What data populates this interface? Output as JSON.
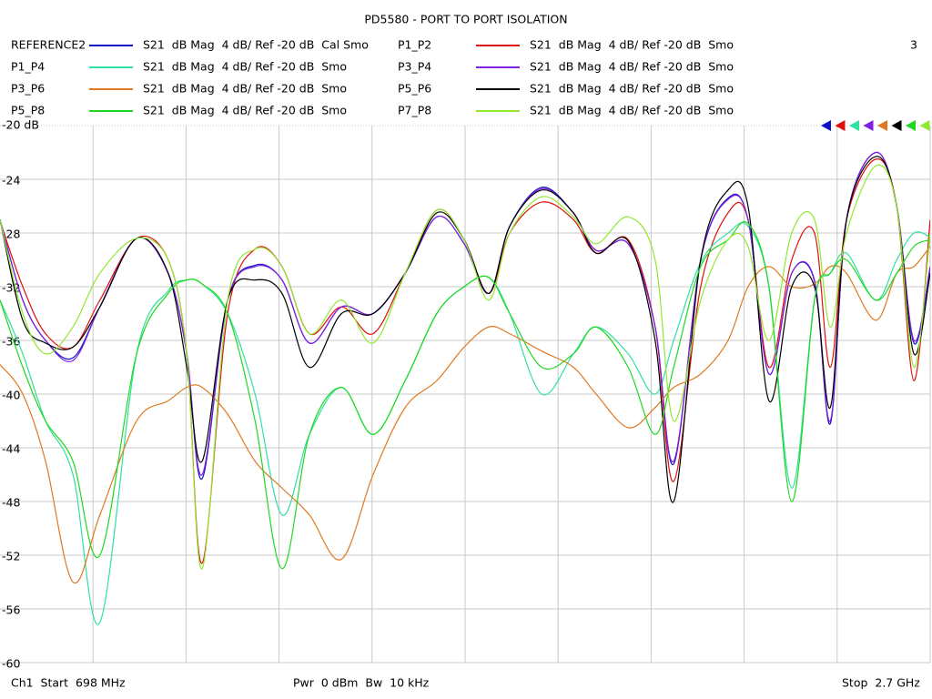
{
  "chart_data": {
    "type": "line",
    "title": "PD5580 - PORT TO PORT ISOLATION",
    "channel_number": "3",
    "footer_left": "Ch1  Start  698 MHz",
    "footer_center": "Pwr  0 dBm  Bw  10 kHz",
    "footer_right": "Stop  2.7 GHz",
    "xlim": [
      698,
      2700
    ],
    "ylim": [
      -60,
      -20
    ],
    "yticks": [
      {
        "value": -20,
        "label": "-20 dB"
      },
      -24,
      -28,
      -32,
      -36,
      -40,
      -44,
      -48,
      -52,
      -56,
      -60
    ],
    "grid": true,
    "x": [
      698,
      747,
      796,
      855,
      913,
      992,
      1060,
      1100,
      1133,
      1188,
      1247,
      1305,
      1364,
      1433,
      1501,
      1570,
      1638,
      1697,
      1750,
      1795,
      1864,
      1932,
      1981,
      2050,
      2108,
      2148,
      2206,
      2265,
      2308,
      2353,
      2402,
      2451,
      2485,
      2520,
      2583,
      2628,
      2665,
      2700
    ],
    "series": [
      {
        "name": "REFERENCE2",
        "description": "S21  dB Mag  4 dB/ Ref -20 dB  Cal Smo",
        "color": "#1010c8",
        "values": [
          -27,
          -33,
          -36,
          -37.3,
          -33.5,
          -28.4,
          -31,
          -37,
          -46.3,
          -33,
          -30.4,
          -31.5,
          -36.2,
          -33.5,
          -34,
          -31,
          -26.8,
          -28.8,
          -32.5,
          -27.5,
          -24.6,
          -26.5,
          -29.3,
          -28.8,
          -35,
          -45.2,
          -30,
          -25.4,
          -27,
          -38.5,
          -31,
          -31.6,
          -42.2,
          -27,
          -22,
          -26,
          -36.2,
          -30.6
        ]
      },
      {
        "name": "P1_P2",
        "description": "S21  dB Mag  4 dB/ Ref -20 dB  Smo",
        "color": "#e01010",
        "values": [
          -27.1,
          -32,
          -35.5,
          -36.5,
          -33,
          -28.4,
          -30,
          -37,
          -52.6,
          -34,
          -29.2,
          -30.5,
          -35.5,
          -33.5,
          -35.5,
          -31,
          -26.3,
          -28.5,
          -32.5,
          -28,
          -25.7,
          -27,
          -29.5,
          -28.5,
          -35,
          -46.5,
          -32,
          -26.5,
          -27,
          -38,
          -30,
          -28,
          -38,
          -27,
          -22.5,
          -26,
          -39,
          -27
        ]
      },
      {
        "name": "P1_P4",
        "description": "S21  dB Mag  4 dB/ Ref -20 dB  Smo",
        "color": "#30e0a0",
        "values": [
          -33,
          -37,
          -42,
          -46,
          -57,
          -37,
          -32.3,
          -31.5,
          -31.8,
          -34,
          -40,
          -49,
          -43,
          -39.5,
          -43,
          -39,
          -34,
          -32,
          -31.3,
          -34,
          -40,
          -37,
          -35,
          -37,
          -40,
          -36,
          -30.2,
          -28,
          -27.5,
          -32,
          -47,
          -33,
          -31,
          -29.5,
          -33,
          -30,
          -28,
          -28.3
        ]
      },
      {
        "name": "P3_P4",
        "description": "S21  dB Mag  4 dB/ Ref -20 dB  Smo",
        "color": "#8020e0",
        "values": [
          -27,
          -33,
          -36,
          -37.5,
          -33.5,
          -28.4,
          -31,
          -37,
          -46,
          -33,
          -30.5,
          -31.5,
          -36.2,
          -33.5,
          -34,
          -31,
          -26.8,
          -28.8,
          -32.5,
          -27.5,
          -24.7,
          -26.5,
          -29.3,
          -28.8,
          -35,
          -45,
          -30,
          -25.5,
          -27,
          -38.5,
          -31,
          -31.5,
          -42,
          -27,
          -22,
          -26,
          -36,
          -30.5
        ]
      },
      {
        "name": "P3_P6",
        "description": "S21  dB Mag  4 dB/ Ref -20 dB  Smo",
        "color": "#e07820",
        "values": [
          -37.8,
          -40,
          -45,
          -54,
          -49,
          -42,
          -40.5,
          -39.5,
          -39.5,
          -41.5,
          -45,
          -47,
          -49,
          -52.3,
          -46,
          -41,
          -39,
          -36.5,
          -35,
          -35.5,
          -36.8,
          -38,
          -40,
          -42.5,
          -41,
          -39.5,
          -38.5,
          -36,
          -32,
          -30.5,
          -32,
          -31.8,
          -30.5,
          -31,
          -34.5,
          -31,
          -30.5,
          -29
        ]
      },
      {
        "name": "P5_P6",
        "description": "S21  dB Mag  4 dB/ Ref -20 dB  Smo",
        "color": "#000000",
        "values": [
          -27,
          -34.5,
          -36.2,
          -36.5,
          -33.5,
          -28.4,
          -31,
          -38,
          -45,
          -33,
          -31.5,
          -32.5,
          -38,
          -34,
          -34,
          -31,
          -26.5,
          -28.5,
          -32.5,
          -27.5,
          -24.8,
          -26.5,
          -29.5,
          -28.6,
          -36,
          -48,
          -30,
          -24.8,
          -26,
          -40.5,
          -32,
          -32,
          -41,
          -27,
          -22.3,
          -26,
          -37,
          -31
        ]
      },
      {
        "name": "P5_P8",
        "description": "S21  dB Mag  4 dB/ Ref -20 dB  Smo",
        "color": "#20d820",
        "values": [
          -33,
          -38,
          -42,
          -45,
          -52,
          -37,
          -32.5,
          -31.5,
          -31.8,
          -34,
          -42,
          -53,
          -43,
          -39.5,
          -43,
          -39,
          -34,
          -32,
          -31.3,
          -34,
          -38,
          -37,
          -35,
          -38,
          -43,
          -38,
          -30.5,
          -28.5,
          -27.3,
          -32,
          -48,
          -33,
          -31,
          -30,
          -33,
          -31,
          -29,
          -28.5
        ]
      },
      {
        "name": "P7_P8",
        "description": "S21  dB Mag  4 dB/ Ref -20 dB  Smo",
        "color": "#90e830",
        "values": [
          -27,
          -34,
          -37,
          -35,
          -31,
          -28.4,
          -30,
          -37,
          -53,
          -33,
          -29.2,
          -30.5,
          -35.5,
          -33,
          -36.2,
          -31,
          -26.3,
          -28.5,
          -33,
          -28,
          -25.3,
          -26.8,
          -28.8,
          -26.8,
          -30,
          -42,
          -33,
          -28.5,
          -29,
          -36,
          -28,
          -27,
          -35,
          -28,
          -23,
          -26,
          -38,
          -28
        ]
      }
    ]
  }
}
